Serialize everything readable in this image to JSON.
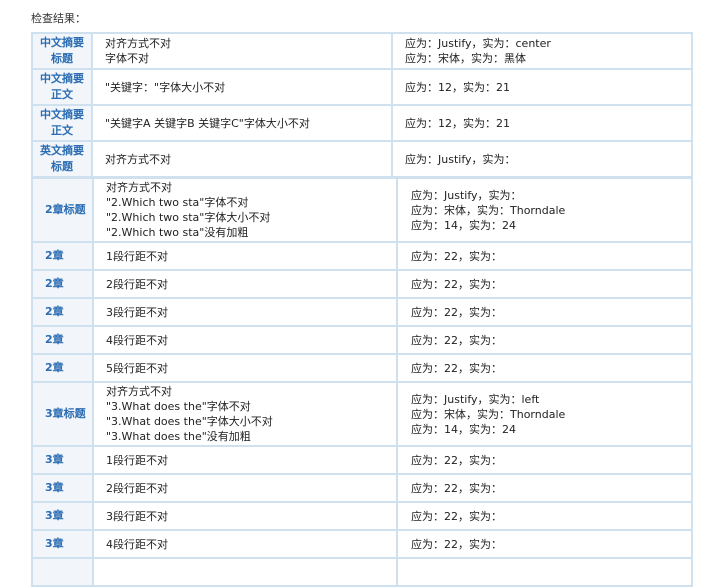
{
  "title": "检查结果：",
  "colors": {
    "label": "#2b6cb3",
    "border": "#cfe0ee",
    "label_bg": "#f2f6fa"
  },
  "table1": [
    {
      "label": "中文摘要标题",
      "issues": [
        "对齐方式不对",
        "字体不对"
      ],
      "results": [
        "应为：Justify，实为：center",
        "应为：宋体，实为：黑体"
      ]
    },
    {
      "label": "中文摘要正文",
      "issues": [
        "\"关键字：\"字体大小不对"
      ],
      "results": [
        "应为：12，实为：21"
      ]
    },
    {
      "label": "中文摘要正文",
      "issues": [
        "\"关键字A 关键字B 关键字C\"字体大小不对"
      ],
      "results": [
        "应为：12，实为：21"
      ]
    },
    {
      "label": "英文摘要标题",
      "issues": [
        "对齐方式不对"
      ],
      "results": [
        "应为：Justify，实为："
      ]
    }
  ],
  "table2": [
    {
      "label": "2章标题",
      "issues": [
        "对齐方式不对",
        "\"2.Which two sta\"字体不对",
        "\"2.Which two sta\"字体大小不对",
        "\"2.Which two sta\"没有加粗"
      ],
      "results": [
        "应为：Justify，实为：",
        "应为：宋体，实为：Thorndale",
        "应为：14，实为：24"
      ]
    },
    {
      "label": "2章",
      "issues": [
        "1段行距不对"
      ],
      "results": [
        "应为：22，实为："
      ]
    },
    {
      "label": "2章",
      "issues": [
        "2段行距不对"
      ],
      "results": [
        "应为：22，实为："
      ]
    },
    {
      "label": "2章",
      "issues": [
        "3段行距不对"
      ],
      "results": [
        "应为：22，实为："
      ]
    },
    {
      "label": "2章",
      "issues": [
        "4段行距不对"
      ],
      "results": [
        "应为：22，实为："
      ]
    },
    {
      "label": "2章",
      "issues": [
        "5段行距不对"
      ],
      "results": [
        "应为：22，实为："
      ]
    },
    {
      "label": "3章标题",
      "issues": [
        "对齐方式不对",
        "\"3.What does the\"字体不对",
        "\"3.What does the\"字体大小不对",
        "\"3.What does the\"没有加粗"
      ],
      "results": [
        "应为：Justify，实为：left",
        "应为：宋体，实为：Thorndale",
        "应为：14，实为：24"
      ]
    },
    {
      "label": "3章",
      "issues": [
        "1段行距不对"
      ],
      "results": [
        "应为：22，实为："
      ]
    },
    {
      "label": "3章",
      "issues": [
        "2段行距不对"
      ],
      "results": [
        "应为：22，实为："
      ]
    },
    {
      "label": "3章",
      "issues": [
        "3段行距不对"
      ],
      "results": [
        "应为：22，实为："
      ]
    },
    {
      "label": "3章",
      "issues": [
        "4段行距不对"
      ],
      "results": [
        "应为：22，实为："
      ]
    },
    {
      "label": "",
      "issues": [
        ""
      ],
      "results": [
        ""
      ]
    }
  ]
}
